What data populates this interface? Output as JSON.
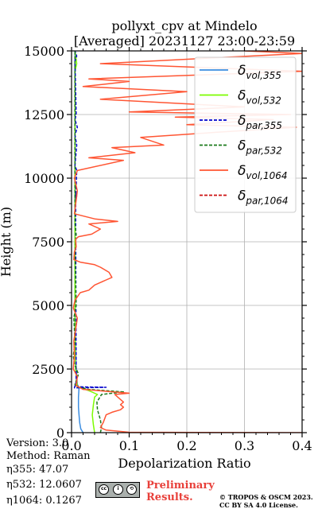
{
  "chart_data": {
    "type": "line",
    "title": "pollyxt_cpv at Mindelo",
    "subtitle": "[Averaged] 20231127 23:00-23:59",
    "xlabel": "Depolarization Ratio",
    "ylabel": "Height (m)",
    "xlim": [
      0,
      0.4
    ],
    "ylim": [
      0,
      15000
    ],
    "xticks": [
      "0.0",
      "0.1",
      "0.2",
      "0.3",
      "0.4"
    ],
    "yticks": [
      "0",
      "2500",
      "5000",
      "7500",
      "10000",
      "12500",
      "15000"
    ],
    "grid": true,
    "legend_position": "top-right",
    "legend": [
      {
        "base": "δ",
        "sub": "vol,355",
        "color": "#3c8de0",
        "dash": false
      },
      {
        "base": "δ",
        "sub": "vol,532",
        "color": "#7cfc00",
        "dash": false
      },
      {
        "base": "δ",
        "sub": "par,355",
        "color": "#0000cc",
        "dash": true
      },
      {
        "base": "δ",
        "sub": "par,532",
        "color": "#1b7a1b",
        "dash": true
      },
      {
        "base": "δ",
        "sub": "vol,1064",
        "color": "#ff5533",
        "dash": false
      },
      {
        "base": "δ",
        "sub": "par,1064",
        "color": "#cc1111",
        "dash": true
      }
    ],
    "series": [
      {
        "name": "δvol,355",
        "color": "#3c8de0",
        "dash": false,
        "points": [
          [
            0.02,
            0
          ],
          [
            0.016,
            150
          ],
          [
            0.014,
            400
          ],
          [
            0.013,
            700
          ],
          [
            0.012,
            1000
          ],
          [
            0.012,
            1400
          ],
          [
            0.013,
            1750
          ],
          [
            0.01,
            1900
          ],
          [
            0.008,
            2500
          ],
          [
            0.006,
            4000
          ],
          [
            0.006,
            7500
          ],
          [
            0.006,
            15000
          ]
        ]
      },
      {
        "name": "δvol,532",
        "color": "#7cfc00",
        "dash": false,
        "points": [
          [
            0.04,
            0
          ],
          [
            0.038,
            300
          ],
          [
            0.036,
            700
          ],
          [
            0.038,
            1100
          ],
          [
            0.04,
            1400
          ],
          [
            0.045,
            1500
          ],
          [
            0.03,
            1650
          ],
          [
            0.01,
            1800
          ],
          [
            0.007,
            2500
          ],
          [
            0.006,
            5000
          ],
          [
            0.006,
            10000
          ],
          [
            0.006,
            14200
          ],
          [
            0.009,
            14500
          ],
          [
            0.006,
            15000
          ]
        ]
      },
      {
        "name": "δpar,355",
        "color": "#0000cc",
        "dash": true,
        "points": [
          [
            0.007,
            1850
          ],
          [
            0.015,
            1800
          ],
          [
            0.06,
            1780
          ],
          [
            0.005,
            1760
          ],
          [
            0.008,
            2000
          ],
          [
            0.007,
            9400
          ],
          [
            0.009,
            9300
          ],
          [
            0.007,
            9100
          ],
          [
            0.009,
            10300
          ],
          [
            0.006,
            10500
          ],
          [
            0.009,
            11300
          ],
          [
            0.006,
            11700
          ],
          [
            0.01,
            12000
          ],
          [
            0.006,
            12300
          ],
          [
            0.008,
            12500
          ],
          [
            0.006,
            14600
          ],
          [
            0.009,
            14800
          ],
          [
            0.006,
            15000
          ]
        ]
      },
      {
        "name": "δpar,532",
        "color": "#1b7a1b",
        "dash": true,
        "points": [
          [
            0.05,
            0
          ],
          [
            0.052,
            200
          ],
          [
            0.05,
            500
          ],
          [
            0.045,
            900
          ],
          [
            0.044,
            1200
          ],
          [
            0.052,
            1500
          ],
          [
            0.09,
            1600
          ],
          [
            0.03,
            1700
          ],
          [
            0.01,
            1800
          ],
          [
            0.006,
            1900
          ],
          [
            0.012,
            2300
          ],
          [
            0.005,
            2700
          ],
          [
            0.003,
            3000
          ],
          [
            0.006,
            3600
          ],
          [
            0.004,
            4500
          ],
          [
            0.008,
            5000
          ],
          [
            0.006,
            7000
          ],
          [
            0.008,
            7800
          ],
          [
            0.006,
            8200
          ],
          [
            0.006,
            15000
          ]
        ]
      },
      {
        "name": "δvol,1064",
        "color": "#ff5533",
        "dash": false,
        "points": [
          [
            0.4,
            0
          ],
          [
            0.1,
            15
          ],
          [
            0.06,
            100
          ],
          [
            0.05,
            200
          ],
          [
            0.055,
            400
          ],
          [
            0.06,
            700
          ],
          [
            0.07,
            800
          ],
          [
            0.085,
            900
          ],
          [
            0.09,
            1000
          ],
          [
            0.085,
            1100
          ],
          [
            0.09,
            1200
          ],
          [
            0.08,
            1400
          ],
          [
            0.075,
            1500
          ],
          [
            0.1,
            1550
          ],
          [
            0.02,
            1700
          ],
          [
            0.008,
            1850
          ],
          [
            0.01,
            2200
          ],
          [
            0.003,
            2500
          ],
          [
            0.005,
            3000
          ],
          [
            0.004,
            3600
          ],
          [
            0.01,
            4500
          ],
          [
            0.003,
            4900
          ],
          [
            0.006,
            5200
          ],
          [
            0.015,
            5500
          ],
          [
            0.03,
            5600
          ],
          [
            0.04,
            5800
          ],
          [
            0.06,
            6000
          ],
          [
            0.07,
            6100
          ],
          [
            0.065,
            6300
          ],
          [
            0.05,
            6500
          ],
          [
            0.04,
            6600
          ],
          [
            0.015,
            6700
          ],
          [
            0.004,
            6800
          ],
          [
            0.005,
            7100
          ],
          [
            0.008,
            7300
          ],
          [
            0.007,
            7600
          ],
          [
            0.012,
            7700
          ],
          [
            0.035,
            7800
          ],
          [
            0.05,
            8000
          ],
          [
            0.03,
            8200
          ],
          [
            0.08,
            8300
          ],
          [
            0.04,
            8400
          ],
          [
            0.005,
            8600
          ],
          [
            0.01,
            9500
          ],
          [
            0.005,
            10000
          ],
          [
            0.01,
            10300
          ],
          [
            0.09,
            10700
          ],
          [
            0.03,
            10800
          ],
          [
            0.11,
            11000
          ],
          [
            0.07,
            11200
          ],
          [
            0.16,
            11300
          ],
          [
            0.12,
            11600
          ],
          [
            0.25,
            11800
          ],
          [
            0.39,
            12000
          ],
          [
            0.2,
            12100
          ],
          [
            0.35,
            12300
          ],
          [
            0.18,
            12400
          ],
          [
            0.38,
            12500
          ],
          [
            0.1,
            12600
          ],
          [
            0.3,
            12800
          ],
          [
            0.05,
            13100
          ],
          [
            0.2,
            13400
          ],
          [
            0.02,
            13600
          ],
          [
            0.1,
            13800
          ],
          [
            0.03,
            13900
          ],
          [
            0.4,
            14200
          ],
          [
            0.05,
            14500
          ],
          [
            0.4,
            14900
          ],
          [
            0.3,
            15000
          ]
        ]
      }
    ]
  },
  "footer": {
    "version": "Version: 3.0",
    "method": "Method: Raman",
    "eta355": "η355:  47.07",
    "eta532": "η532: 12.0607",
    "eta1064": "η1064: 0.1267",
    "preliminary_line1": "Preliminary",
    "preliminary_line2": "Results.",
    "copyright_line1": "© TROPOS & OSCM 2023.",
    "copyright_line2": "CC BY SA 4.0 License."
  }
}
